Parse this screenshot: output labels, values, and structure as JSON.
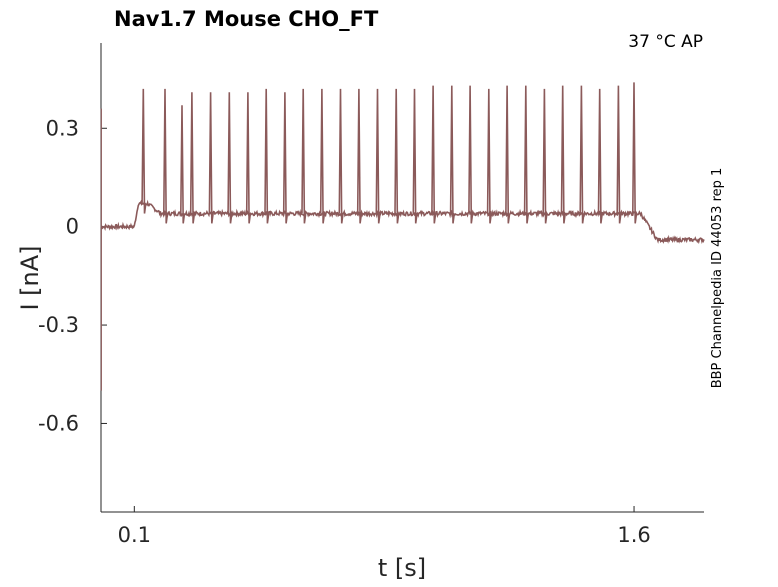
{
  "chart_data": {
    "type": "line",
    "title": "Nav1.7  Mouse  CHO_FT",
    "annotation": "37 °C  AP",
    "side_label": "BBP Channelpedia ID 44053 rep 1",
    "xlabel": "t [s]",
    "ylabel": "I [nA]",
    "xlim": [
      0.0,
      1.81
    ],
    "ylim": [
      -0.87,
      0.56
    ],
    "x_ticks": [
      0.1,
      1.6
    ],
    "x_tick_labels": [
      "0.1",
      "1.6"
    ],
    "y_ticks": [
      0.3,
      0,
      -0.3,
      -0.6
    ],
    "y_tick_labels": [
      "0.3",
      "0",
      "-0.3",
      "-0.6"
    ],
    "grid": false,
    "legend": "none",
    "line_color": "#8b5a5a",
    "baseline_start": [
      0.0,
      0.0
    ],
    "stim_window": [
      0.1,
      1.6
    ],
    "plateau_level": 0.04,
    "post_level": -0.04,
    "initial_transient": [
      0.11,
      0.07
    ],
    "spike_times": [
      0.127,
      0.192,
      0.243,
      0.273,
      0.329,
      0.385,
      0.441,
      0.496,
      0.552,
      0.607,
      0.663,
      0.719,
      0.774,
      0.83,
      0.886,
      0.941,
      0.997,
      1.053,
      1.108,
      1.164,
      1.219,
      1.275,
      1.331,
      1.386,
      1.442,
      1.497,
      1.553,
      1.6
    ],
    "spike_peaks": [
      0.42,
      0.42,
      0.37,
      0.41,
      0.41,
      0.41,
      0.41,
      0.42,
      0.41,
      0.42,
      0.42,
      0.42,
      0.42,
      0.42,
      0.42,
      0.42,
      0.43,
      0.43,
      0.43,
      0.42,
      0.43,
      0.43,
      0.42,
      0.43,
      0.43,
      0.42,
      0.43,
      0.44
    ]
  }
}
